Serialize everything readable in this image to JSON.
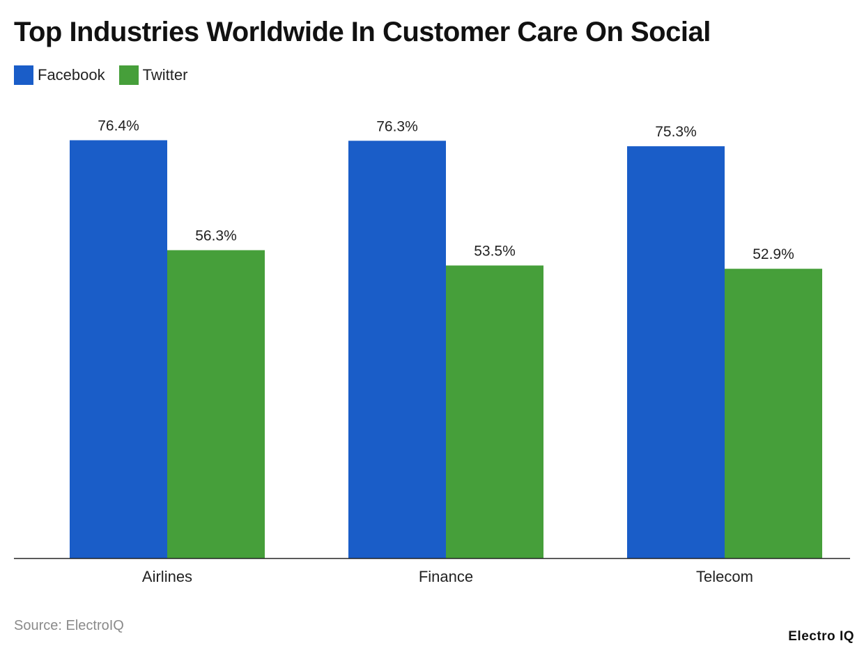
{
  "colors": {
    "facebook": "#1a5dc8",
    "twitter": "#469f3a",
    "axis": "#222222"
  },
  "chart_data": {
    "type": "bar",
    "title": "Top Industries Worldwide In Customer Care On Social",
    "categories": [
      "Airlines",
      "Finance",
      "Telecom"
    ],
    "series": [
      {
        "name": "Facebook",
        "values": [
          76.4,
          76.3,
          75.3
        ],
        "labels": [
          "76.4%",
          "76.3%",
          "75.3%"
        ]
      },
      {
        "name": "Twitter",
        "values": [
          56.3,
          53.5,
          52.9
        ],
        "labels": [
          "56.3%",
          "53.5%",
          "52.9%"
        ]
      }
    ],
    "ylim": [
      0,
      100
    ],
    "grid": false,
    "legend": "top-left"
  },
  "source": "Source: ElectroIQ",
  "brand": "Electro IQ"
}
